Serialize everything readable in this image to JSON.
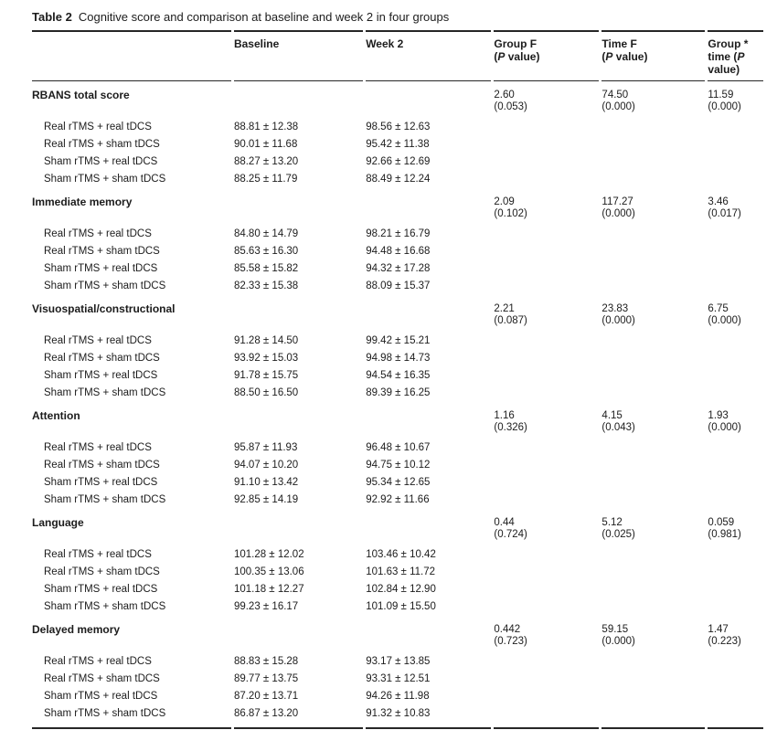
{
  "title": {
    "label": "Table 2",
    "text": "Cognitive score and comparison at baseline and week 2 in four groups"
  },
  "table": {
    "header": {
      "baseline": "Baseline",
      "week2": "Week 2",
      "group_f_line1": "Group F",
      "time_f_line1": "Time F",
      "p_open": "(",
      "p": "P",
      "p_close": " value)",
      "gt_line1": "Group *",
      "gt_line2_pre": "time (",
      "gt_line2_p": "P",
      "gt_line3": "value)"
    },
    "sections": [
      {
        "label": "RBANS total score",
        "group_f": "2.60",
        "group_p": "(0.053)",
        "time_f": "74.50",
        "time_p": "(0.000)",
        "gxt_f": "11.59",
        "gxt_p": "(0.000)",
        "rows": [
          {
            "label": "Real rTMS + real tDCS",
            "baseline": "88.81 ± 12.38",
            "week2": "98.56 ± 12.63"
          },
          {
            "label": "Real rTMS + sham tDCS",
            "baseline": "90.01 ± 11.68",
            "week2": "95.42 ± 11.38"
          },
          {
            "label": "Sham rTMS + real tDCS",
            "baseline": "88.27 ± 13.20",
            "week2": "92.66 ± 12.69"
          },
          {
            "label": "Sham rTMS + sham tDCS",
            "baseline": "88.25 ± 11.79",
            "week2": "88.49 ± 12.24"
          }
        ]
      },
      {
        "label": "Immediate memory",
        "group_f": "2.09",
        "group_p": "(0.102)",
        "time_f": "117.27",
        "time_p": "(0.000)",
        "gxt_f": "3.46",
        "gxt_p": "(0.017)",
        "rows": [
          {
            "label": "Real rTMS + real tDCS",
            "baseline": "84.80 ± 14.79",
            "week2": "98.21 ± 16.79"
          },
          {
            "label": "Real rTMS + sham tDCS",
            "baseline": "85.63 ± 16.30",
            "week2": "94.48 ± 16.68"
          },
          {
            "label": "Sham rTMS + real tDCS",
            "baseline": "85.58 ± 15.82",
            "week2": "94.32 ± 17.28"
          },
          {
            "label": "Sham rTMS + sham tDCS",
            "baseline": "82.33 ± 15.38",
            "week2": "88.09 ± 15.37"
          }
        ]
      },
      {
        "label": "Visuospatial/constructional",
        "group_f": "2.21",
        "group_p": "(0.087)",
        "time_f": "23.83",
        "time_p": "(0.000)",
        "gxt_f": "6.75",
        "gxt_p": "(0.000)",
        "rows": [
          {
            "label": "Real rTMS + real tDCS",
            "baseline": "91.28 ± 14.50",
            "week2": "99.42 ± 15.21"
          },
          {
            "label": "Real rTMS + sham tDCS",
            "baseline": "93.92 ± 15.03",
            "week2": "94.98 ± 14.73"
          },
          {
            "label": "Sham rTMS + real tDCS",
            "baseline": "91.78 ± 15.75",
            "week2": "94.54 ± 16.35"
          },
          {
            "label": "Sham rTMS + sham tDCS",
            "baseline": "88.50 ± 16.50",
            "week2": "89.39 ± 16.25"
          }
        ]
      },
      {
        "label": "Attention",
        "group_f": "1.16",
        "group_p": "(0.326)",
        "time_f": "4.15",
        "time_p": "(0.043)",
        "gxt_f": "1.93",
        "gxt_p": "(0.000)",
        "rows": [
          {
            "label": "Real rTMS + real tDCS",
            "baseline": "95.87 ± 11.93",
            "week2": "96.48 ± 10.67"
          },
          {
            "label": "Real rTMS + sham tDCS",
            "baseline": "94.07 ± 10.20",
            "week2": "94.75 ± 10.12"
          },
          {
            "label": "Sham rTMS + real tDCS",
            "baseline": "91.10 ± 13.42",
            "week2": "95.34 ± 12.65"
          },
          {
            "label": "Sham rTMS + sham tDCS",
            "baseline": "92.85 ± 14.19",
            "week2": "92.92 ± 11.66"
          }
        ]
      },
      {
        "label": "Language",
        "group_f": "0.44",
        "group_p": "(0.724)",
        "time_f": "5.12",
        "time_p": "(0.025)",
        "gxt_f": "0.059",
        "gxt_p": "(0.981)",
        "rows": [
          {
            "label": "Real rTMS + real tDCS",
            "baseline": "101.28 ± 12.02",
            "week2": "103.46 ± 10.42"
          },
          {
            "label": "Real rTMS + sham tDCS",
            "baseline": "100.35 ± 13.06",
            "week2": "101.63 ± 11.72"
          },
          {
            "label": "Sham rTMS + real tDCS",
            "baseline": "101.18 ± 12.27",
            "week2": "102.84 ± 12.90"
          },
          {
            "label": "Sham rTMS + sham tDCS",
            "baseline": "99.23 ± 16.17",
            "week2": "101.09 ± 15.50"
          }
        ]
      },
      {
        "label": "Delayed memory",
        "group_f": "0.442",
        "group_p": "(0.723)",
        "time_f": "59.15",
        "time_p": "(0.000)",
        "gxt_f": "1.47",
        "gxt_p": "(0.223)",
        "rows": [
          {
            "label": "Real rTMS + real tDCS",
            "baseline": "88.83 ± 15.28",
            "week2": "93.17 ± 13.85"
          },
          {
            "label": "Real rTMS + sham tDCS",
            "baseline": "89.77 ± 13.75",
            "week2": "93.31 ± 12.51"
          },
          {
            "label": "Sham rTMS + real tDCS",
            "baseline": "87.20 ± 13.71",
            "week2": "94.26 ± 11.98"
          },
          {
            "label": "Sham rTMS + sham tDCS",
            "baseline": "86.87 ± 13.20",
            "week2": "91.32 ± 10.83"
          }
        ]
      }
    ]
  }
}
